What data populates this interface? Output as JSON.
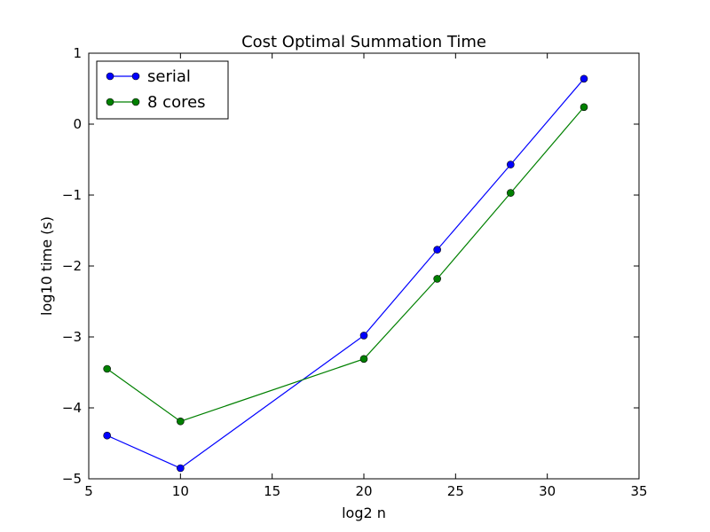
{
  "chart_data": {
    "type": "line",
    "title": "Cost Optimal Summation Time",
    "xlabel": "log2 n",
    "ylabel": "log10 time (s)",
    "xlim": [
      5,
      35
    ],
    "ylim": [
      -5,
      1
    ],
    "xticks": [
      5,
      10,
      15,
      20,
      25,
      30,
      35
    ],
    "yticks": [
      1,
      0,
      -1,
      -2,
      -3,
      -4,
      -5
    ],
    "xtick_labels": [
      "5",
      "10",
      "15",
      "20",
      "25",
      "30",
      "35"
    ],
    "ytick_labels": [
      "1",
      "0",
      "−1",
      "−2",
      "−3",
      "−4",
      "−5"
    ],
    "grid": false,
    "legend_position": "top-left",
    "x": [
      6,
      10,
      20,
      24,
      28,
      32
    ],
    "series": [
      {
        "name": "serial",
        "color": "#0000ff",
        "marker": "circle",
        "values": [
          -4.39,
          -4.85,
          -2.98,
          -1.77,
          -0.57,
          0.64
        ]
      },
      {
        "name": "8 cores",
        "color": "#008000",
        "marker": "circle",
        "values": [
          -3.45,
          -4.19,
          -3.31,
          -2.18,
          -0.97,
          0.24
        ]
      }
    ]
  }
}
